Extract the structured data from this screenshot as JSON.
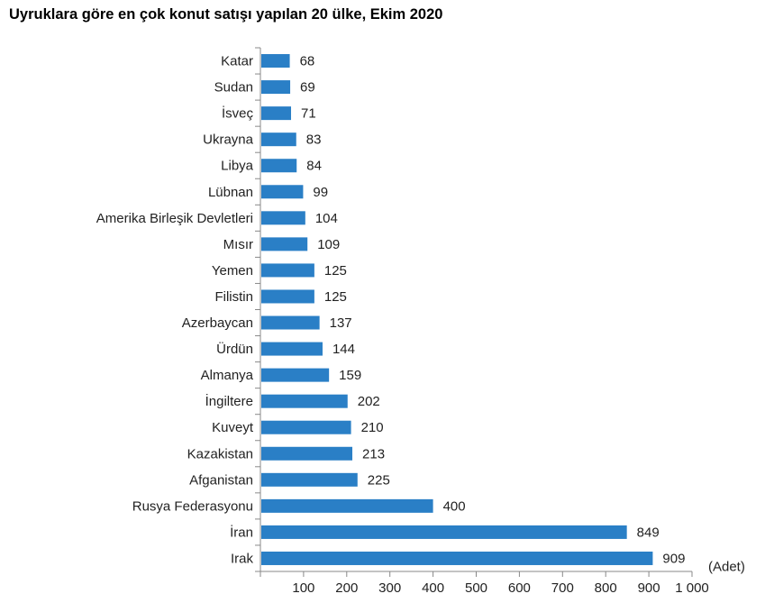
{
  "chart_data": {
    "type": "bar",
    "orientation": "horizontal",
    "title": "Uyruklara göre en çok konut satışı yapılan 20 ülke, Ekim 2020",
    "unit_label": "(Adet)",
    "categories": [
      "Katar",
      "Sudan",
      "İsveç",
      "Ukrayna",
      "Libya",
      "Lübnan",
      "Amerika Birleşik Devletleri",
      "Mısır",
      "Yemen",
      "Filistin",
      "Azerbaycan",
      "Ürdün",
      "Almanya",
      "İngiltere",
      "Kuveyt",
      "Kazakistan",
      "Afganistan",
      "Rusya Federasyonu",
      "İran",
      "Irak"
    ],
    "values": [
      68,
      69,
      71,
      83,
      84,
      99,
      104,
      109,
      125,
      125,
      137,
      144,
      159,
      202,
      210,
      213,
      225,
      400,
      849,
      909
    ],
    "xlim": [
      0,
      1000
    ],
    "tick_labels": [
      "100",
      "200",
      "300",
      "400",
      "500",
      "600",
      "700",
      "800",
      "900",
      "1 000"
    ],
    "bar_color": "#2a7fc6",
    "grid": false
  }
}
